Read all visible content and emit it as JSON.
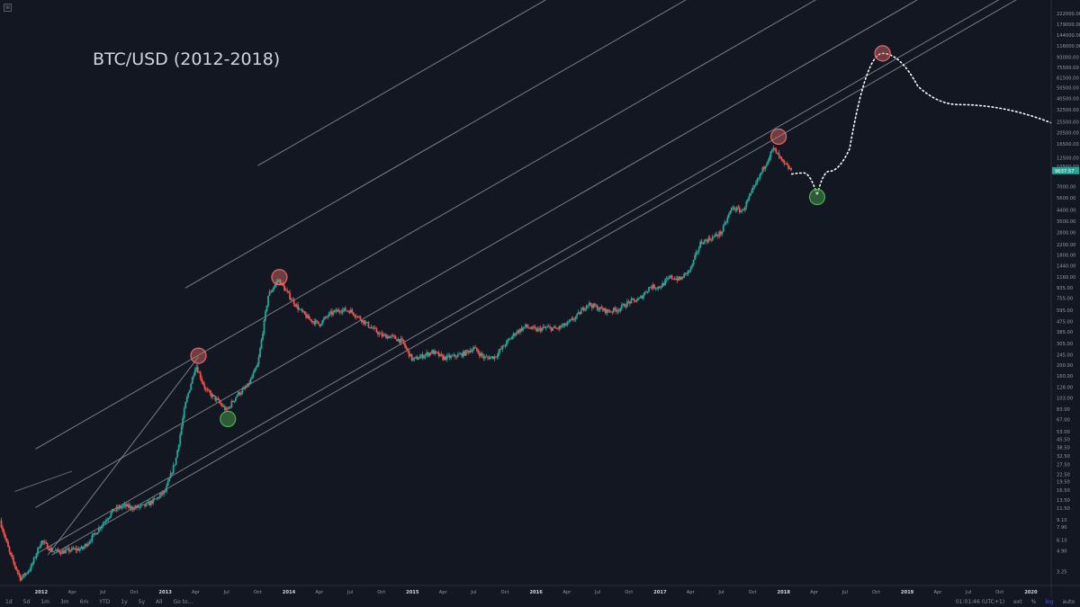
{
  "chart_data": {
    "type": "candlestick",
    "title": "BTC/USD (2012-2018)",
    "y_scale": "log",
    "ylim": [
      2.5,
      270000
    ],
    "xlim": [
      "2011-09-01",
      "2020-03-01"
    ],
    "y_ticks": [
      "3.25",
      "4.90",
      "6.10",
      "7.90",
      "9.10",
      "11.50",
      "13.50",
      "16.50",
      "19.50",
      "22.50",
      "27.50",
      "32.50",
      "38.50",
      "45.50",
      "53.00",
      "67.00",
      "83.00",
      "103.00",
      "128.00",
      "160.00",
      "200.00",
      "245.00",
      "305.00",
      "385.00",
      "475.00",
      "595.00",
      "755.00",
      "935.00",
      "1160.00",
      "1440.00",
      "1800.00",
      "2200.00",
      "2800.00",
      "3500.00",
      "4400.00",
      "5600.00",
      "7000.00",
      "10500.00",
      "12500.00",
      "16500.00",
      "20500.00",
      "25500.00",
      "32500.00",
      "40500.00",
      "50500.00",
      "61500.00",
      "75500.00",
      "93000.00",
      "116000.00",
      "144000.00",
      "179000.00",
      "222000.00",
      "275000.00"
    ],
    "x_ticks": [
      {
        "label": "Sep",
        "date": "2011-09-01",
        "bold": false
      },
      {
        "label": "2012",
        "date": "2012-01-01",
        "bold": true
      },
      {
        "label": "Apr",
        "date": "2012-04-01",
        "bold": false
      },
      {
        "label": "Jul",
        "date": "2012-07-01",
        "bold": false
      },
      {
        "label": "Oct",
        "date": "2012-10-01",
        "bold": false
      },
      {
        "label": "2013",
        "date": "2013-01-01",
        "bold": true
      },
      {
        "label": "Apr",
        "date": "2013-04-01",
        "bold": false
      },
      {
        "label": "Jul",
        "date": "2013-07-01",
        "bold": false
      },
      {
        "label": "Oct",
        "date": "2013-10-01",
        "bold": false
      },
      {
        "label": "2014",
        "date": "2014-01-01",
        "bold": true
      },
      {
        "label": "Apr",
        "date": "2014-04-01",
        "bold": false
      },
      {
        "label": "Jul",
        "date": "2014-07-01",
        "bold": false
      },
      {
        "label": "Oct",
        "date": "2014-10-01",
        "bold": false
      },
      {
        "label": "2015",
        "date": "2015-01-01",
        "bold": true
      },
      {
        "label": "Apr",
        "date": "2015-04-01",
        "bold": false
      },
      {
        "label": "Jul",
        "date": "2015-07-01",
        "bold": false
      },
      {
        "label": "Oct",
        "date": "2015-10-01",
        "bold": false
      },
      {
        "label": "2016",
        "date": "2016-01-01",
        "bold": true
      },
      {
        "label": "Apr",
        "date": "2016-04-01",
        "bold": false
      },
      {
        "label": "Jul",
        "date": "2016-07-01",
        "bold": false
      },
      {
        "label": "Oct",
        "date": "2016-10-01",
        "bold": false
      },
      {
        "label": "2017",
        "date": "2017-01-01",
        "bold": true
      },
      {
        "label": "Apr",
        "date": "2017-04-01",
        "bold": false
      },
      {
        "label": "Jul",
        "date": "2017-07-01",
        "bold": false
      },
      {
        "label": "Oct",
        "date": "2017-10-01",
        "bold": false
      },
      {
        "label": "2018",
        "date": "2018-01-01",
        "bold": true
      },
      {
        "label": "Apr",
        "date": "2018-04-01",
        "bold": false
      },
      {
        "label": "Jul",
        "date": "2018-07-01",
        "bold": false
      },
      {
        "label": "Oct",
        "date": "2018-10-01",
        "bold": false
      },
      {
        "label": "2019",
        "date": "2019-01-01",
        "bold": true
      },
      {
        "label": "Apr",
        "date": "2019-04-01",
        "bold": false
      },
      {
        "label": "Jul",
        "date": "2019-07-01",
        "bold": false
      },
      {
        "label": "Oct",
        "date": "2019-10-01",
        "bold": false
      },
      {
        "label": "2020",
        "date": "2020-01-01",
        "bold": true
      }
    ],
    "price_path": [
      [
        "2011-09-01",
        9
      ],
      [
        "2011-10-01",
        4.5
      ],
      [
        "2011-11-01",
        2.8
      ],
      [
        "2011-12-01",
        3.5
      ],
      [
        "2012-01-01",
        6
      ],
      [
        "2012-02-01",
        4.9
      ],
      [
        "2012-03-01",
        4.8
      ],
      [
        "2012-04-01",
        5
      ],
      [
        "2012-05-01",
        5.1
      ],
      [
        "2012-06-01",
        6.5
      ],
      [
        "2012-07-01",
        8.5
      ],
      [
        "2012-08-01",
        11
      ],
      [
        "2012-09-01",
        12
      ],
      [
        "2012-10-01",
        11.5
      ],
      [
        "2012-11-01",
        12
      ],
      [
        "2012-12-01",
        13.5
      ],
      [
        "2013-01-01",
        16
      ],
      [
        "2013-02-01",
        30
      ],
      [
        "2013-03-01",
        90
      ],
      [
        "2013-04-01",
        200
      ],
      [
        "2013-05-01",
        120
      ],
      [
        "2013-06-01",
        100
      ],
      [
        "2013-07-01",
        80
      ],
      [
        "2013-08-01",
        110
      ],
      [
        "2013-09-01",
        130
      ],
      [
        "2013-10-01",
        200
      ],
      [
        "2013-11-01",
        800
      ],
      [
        "2013-12-01",
        1100
      ],
      [
        "2014-01-01",
        800
      ],
      [
        "2014-02-01",
        600
      ],
      [
        "2014-03-01",
        500
      ],
      [
        "2014-04-01",
        450
      ],
      [
        "2014-05-01",
        550
      ],
      [
        "2014-06-01",
        600
      ],
      [
        "2014-07-01",
        590
      ],
      [
        "2014-08-01",
        500
      ],
      [
        "2014-09-01",
        420
      ],
      [
        "2014-10-01",
        360
      ],
      [
        "2014-11-01",
        350
      ],
      [
        "2014-12-01",
        320
      ],
      [
        "2015-01-01",
        220
      ],
      [
        "2015-02-01",
        240
      ],
      [
        "2015-03-01",
        260
      ],
      [
        "2015-04-01",
        230
      ],
      [
        "2015-05-01",
        235
      ],
      [
        "2015-06-01",
        250
      ],
      [
        "2015-07-01",
        280
      ],
      [
        "2015-08-01",
        230
      ],
      [
        "2015-09-01",
        235
      ],
      [
        "2015-10-01",
        300
      ],
      [
        "2015-11-01",
        380
      ],
      [
        "2015-12-01",
        430
      ],
      [
        "2016-01-01",
        400
      ],
      [
        "2016-02-01",
        420
      ],
      [
        "2016-03-01",
        410
      ],
      [
        "2016-04-01",
        450
      ],
      [
        "2016-05-01",
        530
      ],
      [
        "2016-06-01",
        680
      ],
      [
        "2016-07-01",
        620
      ],
      [
        "2016-08-01",
        580
      ],
      [
        "2016-09-01",
        610
      ],
      [
        "2016-10-01",
        700
      ],
      [
        "2016-11-01",
        740
      ],
      [
        "2016-12-01",
        950
      ],
      [
        "2017-01-01",
        950
      ],
      [
        "2017-02-01",
        1150
      ],
      [
        "2017-03-01",
        1100
      ],
      [
        "2017-04-01",
        1350
      ],
      [
        "2017-05-01",
        2300
      ],
      [
        "2017-06-01",
        2500
      ],
      [
        "2017-07-01",
        2800
      ],
      [
        "2017-08-01",
        4600
      ],
      [
        "2017-09-01",
        4300
      ],
      [
        "2017-10-01",
        6400
      ],
      [
        "2017-11-01",
        10000
      ],
      [
        "2017-12-01",
        15000
      ],
      [
        "2018-01-01",
        11000
      ],
      [
        "2018-01-25",
        9637
      ]
    ],
    "annotations": {
      "tops": [
        {
          "date": "2013-04-09",
          "price": 240
        },
        {
          "date": "2013-12-04",
          "price": 1150
        },
        {
          "date": "2017-12-17",
          "price": 19000
        },
        {
          "date": "2018-10-20",
          "price": 100000
        }
      ],
      "bottoms": [
        {
          "date": "2013-07-05",
          "price": 68
        },
        {
          "date": "2018-04-10",
          "price": 5700
        }
      ],
      "projection": [
        [
          "2018-01-25",
          9000
        ],
        [
          "2018-03-01",
          9200
        ],
        [
          "2018-04-10",
          5900
        ],
        [
          "2018-05-15",
          9500
        ],
        [
          "2018-07-15",
          15000
        ],
        [
          "2018-10-20",
          100000
        ],
        [
          "2019-02-01",
          52000
        ],
        [
          "2019-06-01",
          36000
        ],
        [
          "2020-03-01",
          25000
        ]
      ],
      "channel": {
        "slope_ref": [
          [
            "2012-02-01",
            4.5
          ],
          [
            "2017-12-17",
            19000
          ]
        ],
        "line_ref_dates": [
          "2012-02-01",
          "2012-02-01",
          "2012-02-01",
          "2012-02-01",
          "2012-02-01",
          "2012-02-01"
        ],
        "line_ref_prices": [
          4.5,
          5.5,
          14,
          45,
          200,
          1000
        ]
      },
      "diagonal": [
        [
          "2012-01-20",
          4.5
        ],
        [
          "2013-04-09",
          235
        ]
      ]
    },
    "last_price": "9637.57",
    "grid": false,
    "legend": "none"
  },
  "bottombar": {
    "ranges": [
      "1d",
      "5d",
      "1m",
      "3m",
      "6m",
      "YTD",
      "1y",
      "5y",
      "All",
      "Go to..."
    ],
    "clock": "01:01:46 (UTC+1)",
    "toggles": [
      "ext",
      "%",
      "log",
      "auto"
    ],
    "active_toggle": "log"
  },
  "colors": {
    "background": "#131722",
    "up": "#26a69a",
    "down": "#ef5350",
    "top_circle": "#e06b6b",
    "bottom_circle": "#4caf50",
    "channel_line": "#9aa0a6"
  }
}
